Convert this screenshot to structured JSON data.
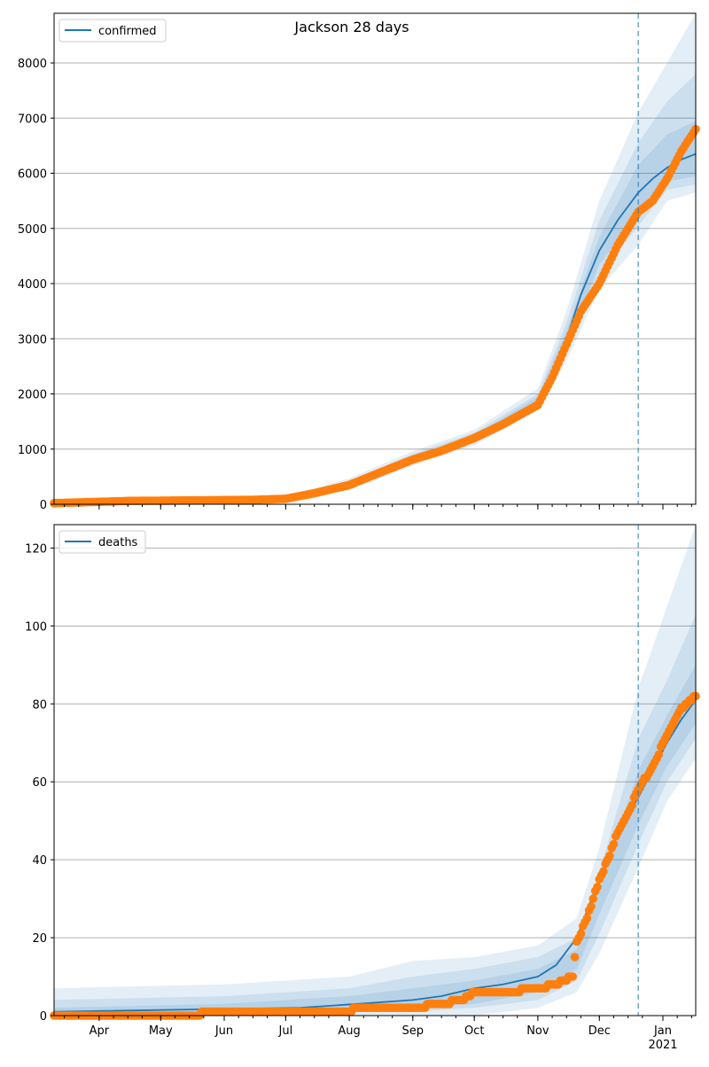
{
  "figure": {
    "title": "Jackson 28 days"
  },
  "chart_data": [
    {
      "type": "line",
      "panel": "top",
      "legend": {
        "label": "confirmed",
        "placement": "upper-left"
      },
      "ylim": [
        0,
        8900
      ],
      "yticks": [
        0,
        1000,
        2000,
        3000,
        4000,
        5000,
        6000,
        7000,
        8000
      ],
      "grid": "y",
      "forecast_start": "2020-12-20",
      "colors": {
        "fit": "#1f77b4",
        "observed": "#ff7f0e",
        "band": "#1f77b4",
        "forecast_line": "#1f77b4"
      },
      "fit": {
        "name": "confirmed",
        "x": [
          "2020-03-10",
          "2020-04-01",
          "2020-05-01",
          "2020-06-01",
          "2020-07-01",
          "2020-07-15",
          "2020-08-01",
          "2020-08-15",
          "2020-09-01",
          "2020-09-15",
          "2020-10-01",
          "2020-10-15",
          "2020-11-01",
          "2020-11-08",
          "2020-11-15",
          "2020-11-22",
          "2020-12-01",
          "2020-12-10",
          "2020-12-20",
          "2020-12-27",
          "2021-01-03",
          "2021-01-10",
          "2021-01-17"
        ],
        "y": [
          30,
          50,
          70,
          75,
          100,
          180,
          350,
          600,
          820,
          1000,
          1200,
          1420,
          1880,
          2300,
          3000,
          3800,
          4600,
          5150,
          5650,
          5900,
          6100,
          6250,
          6350
        ]
      },
      "bands": [
        {
          "x": [
            "2020-03-10",
            "2020-05-01",
            "2020-07-01",
            "2020-08-01",
            "2020-09-01",
            "2020-10-01",
            "2020-11-01",
            "2020-11-15",
            "2020-12-01",
            "2020-12-20",
            "2021-01-03",
            "2021-01-17"
          ],
          "lower": [
            0,
            40,
            60,
            250,
            700,
            1070,
            1700,
            2600,
            3900,
            4700,
            5500,
            5650
          ],
          "upper": [
            60,
            110,
            150,
            470,
            960,
            1350,
            2100,
            3500,
            5500,
            7100,
            8000,
            8900
          ]
        },
        {
          "x": [
            "2020-03-10",
            "2020-05-01",
            "2020-07-01",
            "2020-08-01",
            "2020-09-01",
            "2020-10-01",
            "2020-11-01",
            "2020-11-15",
            "2020-12-01",
            "2020-12-20",
            "2021-01-03",
            "2021-01-17"
          ],
          "lower": [
            10,
            50,
            75,
            300,
            740,
            1120,
            1760,
            2750,
            4150,
            5050,
            5700,
            5800
          ],
          "upper": [
            50,
            95,
            130,
            420,
            910,
            1300,
            2000,
            3300,
            5150,
            6550,
            7300,
            7800
          ]
        },
        {
          "x": [
            "2020-03-10",
            "2020-05-01",
            "2020-07-01",
            "2020-08-01",
            "2020-09-01",
            "2020-10-01",
            "2020-11-01",
            "2020-11-15",
            "2020-12-01",
            "2020-12-20",
            "2021-01-03",
            "2021-01-17"
          ],
          "lower": [
            20,
            60,
            85,
            320,
            770,
            1160,
            1810,
            2850,
            4350,
            5300,
            5850,
            5950
          ],
          "upper": [
            40,
            85,
            115,
            380,
            870,
            1250,
            1950,
            3150,
            4850,
            6150,
            6700,
            6950
          ]
        }
      ],
      "observed": {
        "name": "observed",
        "x": [
          "2020-03-10",
          "2020-04-15",
          "2020-05-15",
          "2020-06-15",
          "2020-07-01",
          "2020-07-15",
          "2020-08-01",
          "2020-08-15",
          "2020-09-01",
          "2020-09-15",
          "2020-10-01",
          "2020-10-15",
          "2020-11-01",
          "2020-11-08",
          "2020-11-15",
          "2020-11-22",
          "2020-12-01",
          "2020-12-10",
          "2020-12-20",
          "2020-12-27",
          "2021-01-03",
          "2021-01-10",
          "2021-01-17"
        ],
        "y": [
          20,
          60,
          70,
          80,
          100,
          200,
          350,
          560,
          810,
          970,
          1200,
          1450,
          1800,
          2300,
          2900,
          3500,
          4000,
          4700,
          5300,
          5500,
          5900,
          6400,
          6800
        ]
      }
    },
    {
      "type": "line",
      "panel": "bottom",
      "legend": {
        "label": "deaths",
        "placement": "upper-left"
      },
      "ylim": [
        0,
        126
      ],
      "yticks": [
        0,
        20,
        40,
        60,
        80,
        100,
        120
      ],
      "grid": "y",
      "forecast_start": "2020-12-20",
      "x_tick_labels": [
        "Apr",
        "May",
        "Jun",
        "Jul",
        "Aug",
        "Sep",
        "Oct",
        "Nov",
        "Dec",
        "Jan"
      ],
      "x_tick_dates": [
        "2020-04-01",
        "2020-05-01",
        "2020-06-01",
        "2020-07-01",
        "2020-08-01",
        "2020-09-01",
        "2020-10-01",
        "2020-11-01",
        "2020-12-01",
        "2021-01-01"
      ],
      "x_year_label": "2021",
      "colors": {
        "fit": "#1f77b4",
        "observed": "#ff7f0e",
        "band": "#1f77b4",
        "forecast_line": "#1f77b4"
      },
      "fit": {
        "name": "deaths",
        "x": [
          "2020-03-10",
          "2020-07-08",
          "2020-08-05",
          "2020-09-01",
          "2020-09-15",
          "2020-10-01",
          "2020-10-15",
          "2020-11-01",
          "2020-11-10",
          "2020-11-20",
          "2020-12-01",
          "2020-12-10",
          "2020-12-20",
          "2020-12-27",
          "2021-01-03",
          "2021-01-10",
          "2021-01-17"
        ],
        "y": [
          1,
          2,
          3,
          4,
          5,
          7,
          8,
          10,
          13,
          20,
          35,
          47,
          56,
          63,
          70,
          76,
          81
        ]
      },
      "bands": [
        {
          "x": [
            "2020-03-10",
            "2020-06-01",
            "2020-08-01",
            "2020-09-01",
            "2020-10-01",
            "2020-11-01",
            "2020-11-20",
            "2020-12-01",
            "2020-12-20",
            "2021-01-03",
            "2021-01-17"
          ],
          "lower": [
            0,
            0,
            0,
            0,
            0,
            2,
            6,
            16,
            38,
            55,
            66
          ],
          "upper": [
            7,
            8,
            10,
            14,
            15,
            18,
            25,
            43,
            84,
            105,
            126
          ]
        },
        {
          "x": [
            "2020-03-10",
            "2020-06-01",
            "2020-08-01",
            "2020-09-01",
            "2020-10-01",
            "2020-11-01",
            "2020-11-20",
            "2020-12-01",
            "2020-12-20",
            "2021-01-03",
            "2021-01-17"
          ],
          "lower": [
            0,
            0,
            1,
            1,
            2,
            4,
            9,
            21,
            44,
            60,
            71
          ],
          "upper": [
            4,
            5,
            7,
            10,
            12,
            15,
            20,
            37,
            71,
            86,
            103
          ]
        },
        {
          "x": [
            "2020-03-10",
            "2020-06-01",
            "2020-08-01",
            "2020-09-01",
            "2020-10-01",
            "2020-11-01",
            "2020-11-20",
            "2020-12-01",
            "2020-12-20",
            "2021-01-03",
            "2021-01-17"
          ],
          "lower": [
            0,
            0,
            1,
            2,
            3,
            6,
            12,
            26,
            49,
            64,
            75
          ],
          "upper": [
            2,
            3,
            5,
            7,
            9,
            12,
            17,
            32,
            63,
            77,
            90
          ]
        }
      ],
      "observed": {
        "name": "observed",
        "x": [
          "2020-03-10",
          "2020-07-31",
          "2020-08-05",
          "2020-09-01",
          "2020-09-15",
          "2020-09-25",
          "2020-10-01",
          "2020-10-15",
          "2020-11-01",
          "2020-11-10",
          "2020-11-18",
          "2020-11-20",
          "2020-11-25",
          "2020-12-01",
          "2020-12-06",
          "2020-12-10",
          "2020-12-15",
          "2020-12-20",
          "2020-12-27",
          "2021-01-03",
          "2021-01-10",
          "2021-01-17"
        ],
        "y": [
          0,
          1,
          2,
          2,
          3,
          4,
          6,
          6,
          7,
          8,
          10,
          19,
          25,
          35,
          41,
          47,
          52,
          58,
          64,
          72,
          79,
          82
        ]
      }
    }
  ]
}
